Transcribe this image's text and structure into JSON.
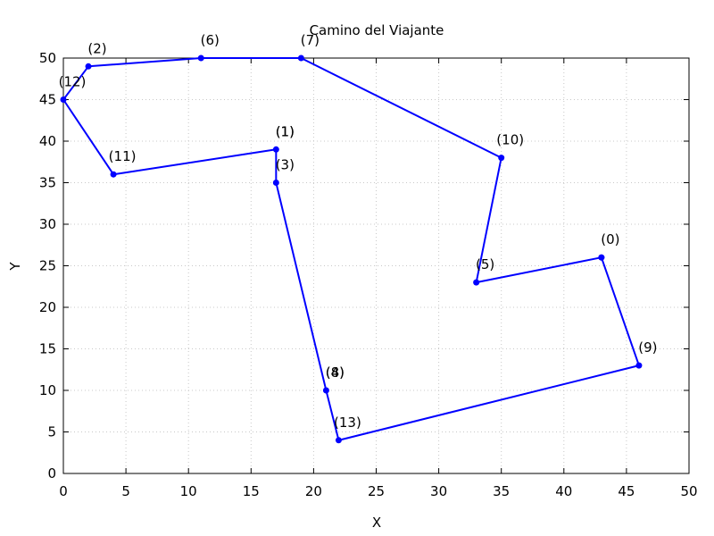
{
  "chart_data": {
    "type": "line",
    "title": "Camino del Viajante",
    "xlabel": "X",
    "ylabel": "Y",
    "xlim": [
      0,
      50
    ],
    "ylim": [
      0,
      50
    ],
    "x_ticks": [
      0,
      5,
      10,
      15,
      20,
      25,
      30,
      35,
      40,
      45,
      50
    ],
    "y_ticks": [
      0,
      5,
      10,
      15,
      20,
      25,
      30,
      35,
      40,
      45,
      50
    ],
    "grid": true,
    "line_color": "#0000ff",
    "points": [
      {
        "label": "(0)",
        "x": 43,
        "y": 26
      },
      {
        "label": "(1)",
        "x": 17,
        "y": 39
      },
      {
        "label": "(1)",
        "x": 17,
        "y": 39
      },
      {
        "label": "(2)",
        "x": 2,
        "y": 49
      },
      {
        "label": "(3)",
        "x": 17,
        "y": 35
      },
      {
        "label": "(4)",
        "x": 21,
        "y": 10
      },
      {
        "label": "(5)",
        "x": 33,
        "y": 23
      },
      {
        "label": "(6)",
        "x": 11,
        "y": 50
      },
      {
        "label": "(7)",
        "x": 19,
        "y": 50
      },
      {
        "label": "(8)",
        "x": 21,
        "y": 10
      },
      {
        "label": "(9)",
        "x": 46,
        "y": 13
      },
      {
        "label": "(10)",
        "x": 35,
        "y": 38
      },
      {
        "label": "(11)",
        "x": 4,
        "y": 36
      },
      {
        "label": "(12)",
        "x": 0,
        "y": 45
      },
      {
        "label": "(13)",
        "x": 22,
        "y": 4
      }
    ],
    "path": [
      {
        "x": 43,
        "y": 26
      },
      {
        "x": 33,
        "y": 23
      },
      {
        "x": 35,
        "y": 38
      },
      {
        "x": 19,
        "y": 50
      },
      {
        "x": 11,
        "y": 50
      },
      {
        "x": 2,
        "y": 49
      },
      {
        "x": 0,
        "y": 45
      },
      {
        "x": 4,
        "y": 36
      },
      {
        "x": 17,
        "y": 39
      },
      {
        "x": 17,
        "y": 35
      },
      {
        "x": 21,
        "y": 10
      },
      {
        "x": 22,
        "y": 4
      },
      {
        "x": 46,
        "y": 13
      },
      {
        "x": 43,
        "y": 26
      }
    ]
  }
}
